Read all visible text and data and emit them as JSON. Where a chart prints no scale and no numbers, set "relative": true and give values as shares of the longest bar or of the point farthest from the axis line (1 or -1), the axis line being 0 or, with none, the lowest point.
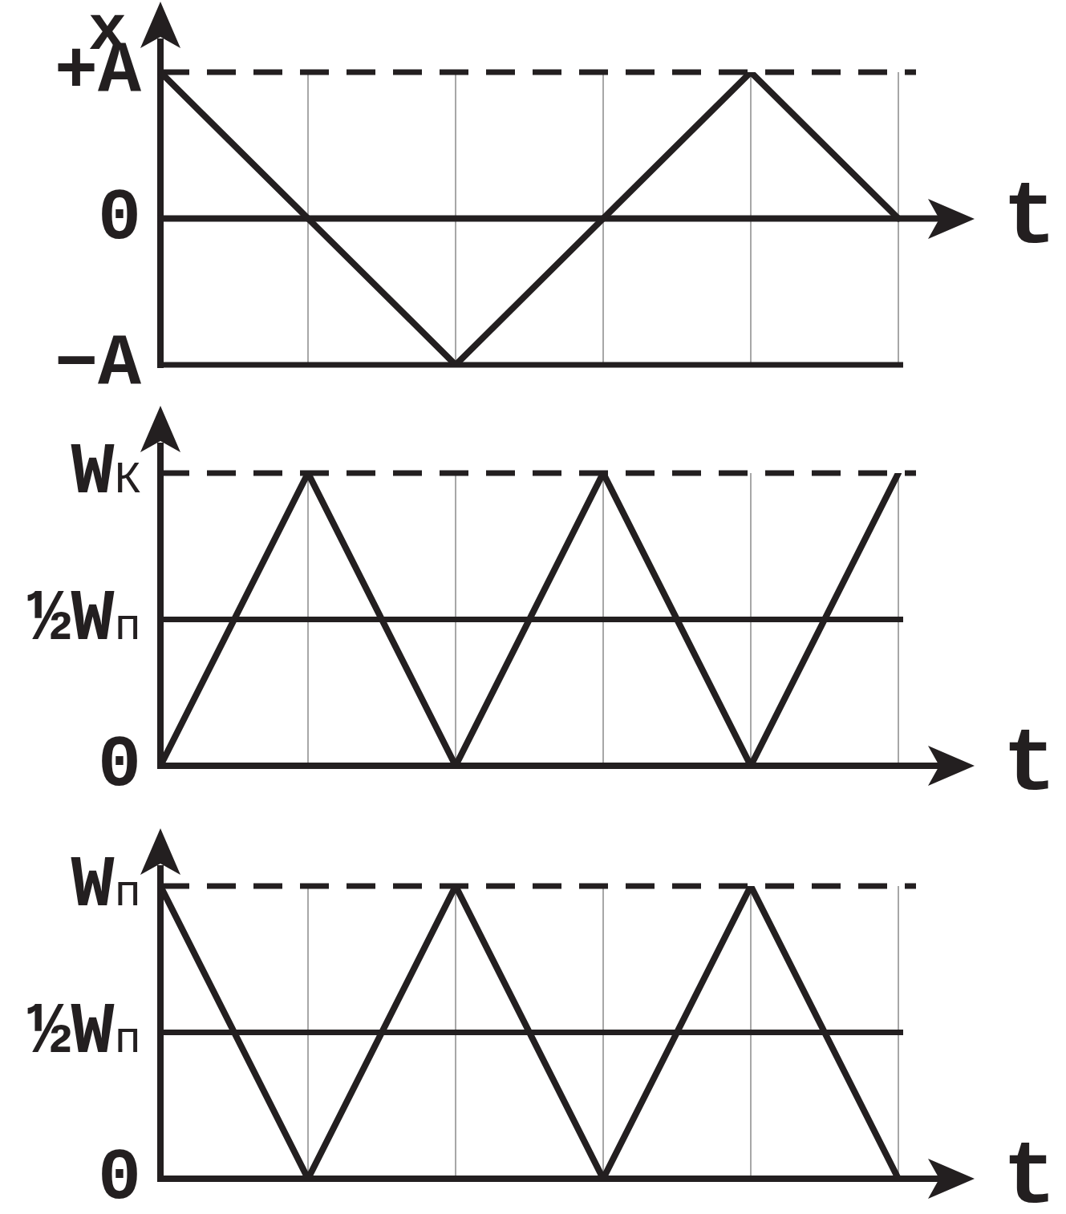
{
  "chart_data": [
    {
      "type": "line",
      "ylabel": "x",
      "xlabel": "t",
      "relative": true,
      "categories": [
        null,
        null,
        null,
        null,
        null,
        null
      ],
      "values": [
        1,
        0,
        -1,
        0,
        1,
        0
      ],
      "color": "#231f20",
      "ref_lines": [
        {
          "axis": "y",
          "value": 1,
          "label": "+A",
          "line_style": "dashed"
        },
        {
          "axis": "y",
          "value": 0,
          "label": "0"
        },
        {
          "axis": "y",
          "value": -1,
          "label": "−A"
        }
      ],
      "grid": "x"
    },
    {
      "type": "line",
      "xlabel": "t",
      "relative": true,
      "categories": [
        null,
        null,
        null,
        null,
        null,
        null
      ],
      "values": [
        0,
        1,
        0,
        1,
        0,
        1
      ],
      "color": "#231f20",
      "ref_lines": [
        {
          "axis": "y",
          "value": 1,
          "label": "W$_{К}$",
          "line_style": "dashed"
        },
        {
          "axis": "y",
          "value": 0.5,
          "label": "½W$_{п}$"
        },
        {
          "axis": "y",
          "value": 0,
          "label": "0"
        }
      ],
      "grid": "x"
    },
    {
      "type": "line",
      "xlabel": "t",
      "relative": true,
      "categories": [
        null,
        null,
        null,
        null,
        null,
        null
      ],
      "values": [
        1,
        0,
        1,
        0,
        1,
        0
      ],
      "color": "#231f20",
      "ref_lines": [
        {
          "axis": "y",
          "value": 1,
          "label": "W$_{п}$",
          "line_style": "dashed"
        },
        {
          "axis": "y",
          "value": 0.5,
          "label": "½W$_{п}$"
        },
        {
          "axis": "y",
          "value": 0,
          "label": "0"
        }
      ],
      "grid": "x"
    }
  ]
}
